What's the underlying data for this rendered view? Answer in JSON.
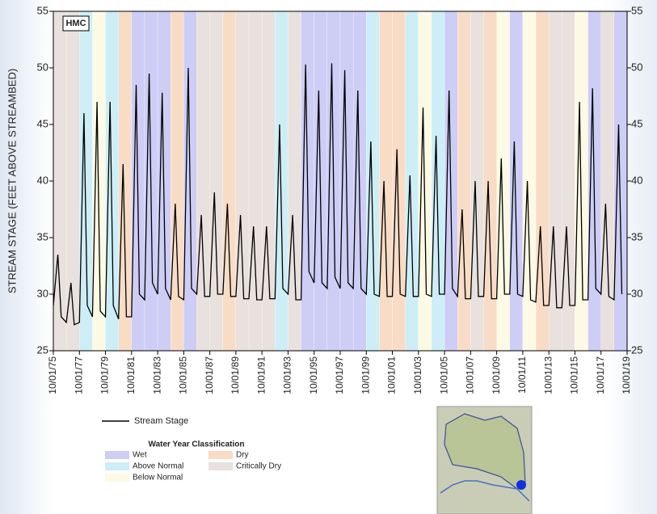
{
  "chart_data": {
    "type": "line",
    "label": "HMC",
    "y_label": "STREAM STAGE (FEET ABOVE STREAMBED)",
    "xlim": [
      1975.75,
      2019.75
    ],
    "ylim": [
      25,
      55
    ],
    "yticks": [
      25,
      30,
      35,
      40,
      45,
      50,
      55
    ],
    "xticks": [
      {
        "value": 1975.75,
        "label": "10/01/75"
      },
      {
        "value": 1977.75,
        "label": "10/01/77"
      },
      {
        "value": 1979.75,
        "label": "10/01/79"
      },
      {
        "value": 1981.75,
        "label": "10/01/81"
      },
      {
        "value": 1983.75,
        "label": "10/01/83"
      },
      {
        "value": 1985.75,
        "label": "10/01/85"
      },
      {
        "value": 1987.75,
        "label": "10/01/87"
      },
      {
        "value": 1989.75,
        "label": "10/01/89"
      },
      {
        "value": 1991.75,
        "label": "10/01/91"
      },
      {
        "value": 1993.75,
        "label": "10/01/93"
      },
      {
        "value": 1995.75,
        "label": "10/01/95"
      },
      {
        "value": 1997.75,
        "label": "10/01/97"
      },
      {
        "value": 1999.75,
        "label": "10/01/99"
      },
      {
        "value": 2001.75,
        "label": "10/01/01"
      },
      {
        "value": 2003.75,
        "label": "10/01/03"
      },
      {
        "value": 2005.75,
        "label": "10/01/05"
      },
      {
        "value": 2007.75,
        "label": "10/01/07"
      },
      {
        "value": 2009.75,
        "label": "10/01/09"
      },
      {
        "value": 2011.75,
        "label": "10/01/11"
      },
      {
        "value": 2013.75,
        "label": "10/01/13"
      },
      {
        "value": 2015.75,
        "label": "10/01/15"
      },
      {
        "value": 2017.75,
        "label": "10/01/17"
      },
      {
        "value": 2019.75,
        "label": "10/01/19"
      }
    ],
    "x": [
      1975.75,
      1976.1,
      1976.35,
      1976.75,
      1977.1,
      1977.35,
      1977.75,
      1978.1,
      1978.35,
      1978.75,
      1979.1,
      1979.35,
      1979.75,
      1980.1,
      1980.35,
      1980.75,
      1981.1,
      1981.35,
      1981.75,
      1982.1,
      1982.35,
      1982.75,
      1983.1,
      1983.35,
      1983.75,
      1984.1,
      1984.35,
      1984.75,
      1985.1,
      1985.35,
      1985.75,
      1986.1,
      1986.35,
      1986.75,
      1987.1,
      1987.35,
      1987.75,
      1988.1,
      1988.35,
      1988.75,
      1989.1,
      1989.35,
      1989.75,
      1990.1,
      1990.35,
      1990.75,
      1991.1,
      1991.35,
      1991.75,
      1992.1,
      1992.35,
      1992.75,
      1993.1,
      1993.35,
      1993.75,
      1994.1,
      1994.35,
      1994.75,
      1995.1,
      1995.35,
      1995.75,
      1996.1,
      1996.35,
      1996.75,
      1997.1,
      1997.35,
      1997.75,
      1998.1,
      1998.35,
      1998.75,
      1999.1,
      1999.35,
      1999.75,
      2000.1,
      2000.35,
      2000.75,
      2001.1,
      2001.35,
      2001.75,
      2002.1,
      2002.35,
      2002.75,
      2003.1,
      2003.35,
      2003.75,
      2004.1,
      2004.35,
      2004.75,
      2005.1,
      2005.35,
      2005.75,
      2006.1,
      2006.35,
      2006.75,
      2007.1,
      2007.35,
      2007.75,
      2008.1,
      2008.35,
      2008.75,
      2009.1,
      2009.35,
      2009.75,
      2010.1,
      2010.35,
      2010.75,
      2011.1,
      2011.35,
      2011.75,
      2012.1,
      2012.35,
      2012.75,
      2013.1,
      2013.35,
      2013.75,
      2014.1,
      2014.35,
      2014.75,
      2015.1,
      2015.35,
      2015.75,
      2016.1,
      2016.35,
      2016.75,
      2017.1,
      2017.35,
      2017.75,
      2018.1,
      2018.35,
      2018.75,
      2019.1,
      2019.35
    ],
    "series": [
      {
        "name": "Stream Stage",
        "color": "#000000",
        "values": [
          29,
          33.5,
          28,
          27.5,
          31,
          27.3,
          27.5,
          46,
          29,
          28,
          47,
          28.5,
          28,
          47,
          29,
          27.8,
          41.5,
          28,
          28,
          48.5,
          30,
          29.5,
          49.5,
          31,
          30,
          47.8,
          30.5,
          29.5,
          38,
          29.8,
          29.5,
          50,
          30.5,
          30,
          37,
          29.8,
          29.8,
          39,
          30,
          30,
          38,
          29.8,
          29.8,
          37,
          29.6,
          29.6,
          36,
          29.5,
          29.5,
          36,
          29.6,
          29.6,
          45,
          30.5,
          30,
          37,
          29.5,
          29.5,
          50.3,
          32,
          31,
          48,
          31,
          30.5,
          50.4,
          31.5,
          30.5,
          49.8,
          31,
          30.5,
          48,
          30.5,
          30,
          43.5,
          30,
          29.8,
          40,
          29.8,
          29.8,
          42.8,
          30,
          29.8,
          40.5,
          29.8,
          29.8,
          46.5,
          30,
          29.8,
          44,
          30,
          30,
          48,
          30.5,
          29.8,
          37.5,
          29.6,
          29.6,
          40,
          29.8,
          29.8,
          40,
          29.6,
          29.6,
          42,
          30,
          30,
          43.5,
          30,
          29.8,
          40,
          29.5,
          29.3,
          36,
          29,
          29,
          36,
          28.8,
          28.8,
          36,
          29,
          29,
          47,
          29.5,
          29.5,
          48.2,
          30.5,
          30,
          38,
          29.8,
          29.5,
          45,
          30
        ]
      }
    ],
    "bands": [
      "Critically Dry",
      "Critically Dry",
      "Above Normal",
      "Below Normal",
      "Above Normal",
      "Dry",
      "Wet",
      "Wet",
      "Wet",
      "Dry",
      "Wet",
      "Critically Dry",
      "Critically Dry",
      "Dry",
      "Critically Dry",
      "Critically Dry",
      "Critically Dry",
      "Above Normal",
      "Critically Dry",
      "Wet",
      "Wet",
      "Wet",
      "Wet",
      "Wet",
      "Above Normal",
      "Dry",
      "Dry",
      "Above Normal",
      "Below Normal",
      "Above Normal",
      "Wet",
      "Dry",
      "Critically Dry",
      "Dry",
      "Below Normal",
      "Wet",
      "Below Normal",
      "Dry",
      "Critically Dry",
      "Critically Dry",
      "Below Normal",
      "Wet",
      "Critically Dry",
      "Wet"
    ],
    "legend_title": "Water Year Classification",
    "classes": [
      {
        "name": "Wet",
        "color": "#cdcdf6"
      },
      {
        "name": "Dry",
        "color": "#f8dcc6"
      },
      {
        "name": "Above Normal",
        "color": "#cdeef6"
      },
      {
        "name": "Critically Dry",
        "color": "#e8e1dd"
      },
      {
        "name": "Below Normal",
        "color": "#fcfae4"
      }
    ]
  }
}
